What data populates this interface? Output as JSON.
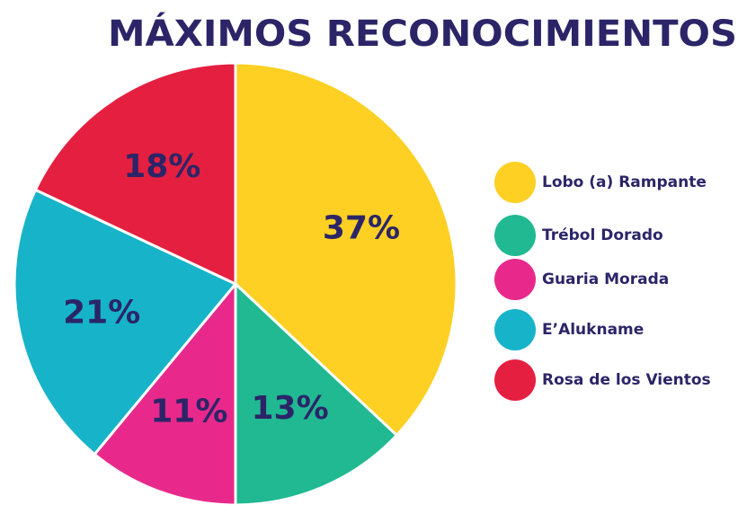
{
  "chart_data": {
    "type": "pie",
    "title": "MÁXIMOS RECONOCIMIENTOS",
    "categories": [
      "Lobo (a) Rampante",
      "Trébol Dorado",
      "Guaria Morada",
      "E’Alukname",
      "Rosa de los Vientos"
    ],
    "values": [
      37,
      13,
      11,
      21,
      18
    ],
    "value_labels": [
      "37%",
      "13%",
      "11%",
      "21%",
      "18%"
    ],
    "colors": [
      "#fdd023",
      "#20b992",
      "#e8298b",
      "#17b3c9",
      "#e51f40"
    ],
    "legend": "right"
  }
}
